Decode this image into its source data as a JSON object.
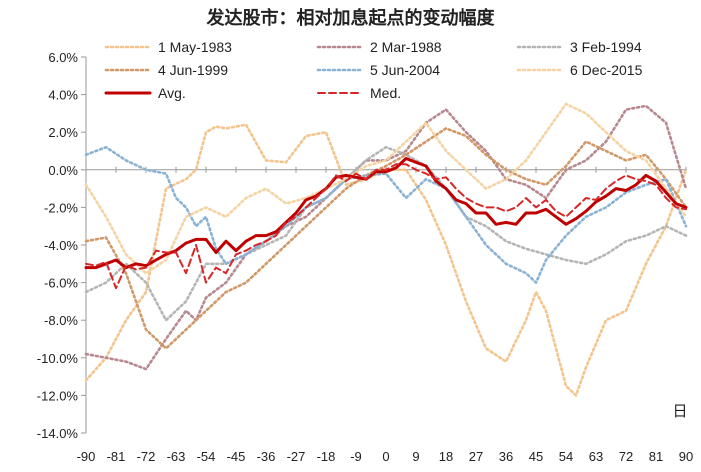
{
  "chart_data": {
    "type": "line",
    "title": "发达股市：相对加息起点的变动幅度",
    "xlabel": "日",
    "ylabel": "",
    "ylim": [
      -14,
      6
    ],
    "yticks": [
      6,
      4,
      2,
      0,
      -2,
      -4,
      -6,
      -8,
      -10,
      -12,
      -14
    ],
    "ytick_labels": [
      "6.0%",
      "4.0%",
      "2.0%",
      "0.0%",
      "-2.0%",
      "-4.0%",
      "-6.0%",
      "-8.0%",
      "-10.0%",
      "-12.0%",
      "-14.0%"
    ],
    "xlim": [
      -90,
      90
    ],
    "xticks": [
      -90,
      -81,
      -72,
      -63,
      -54,
      -45,
      -36,
      -27,
      -18,
      -9,
      0,
      9,
      18,
      27,
      36,
      45,
      54,
      63,
      72,
      81,
      90
    ],
    "xtick_labels": [
      "-90",
      "-81",
      "-72",
      "-63",
      "-54",
      "-45",
      "-36",
      "-27",
      "-18",
      "-9",
      "0",
      "9",
      "18",
      "27",
      "36",
      "45",
      "54",
      "63",
      "72",
      "81",
      "90"
    ],
    "legend_placement": "top",
    "series": [
      {
        "name": "1 May-1983",
        "color": "#f3c48d",
        "style": "dotted",
        "x": [
          -90,
          -84,
          -78,
          -72,
          -66,
          -60,
          -57,
          -54,
          -51,
          -48,
          -45,
          -42,
          -36,
          -30,
          -24,
          -18,
          -12,
          -6,
          0,
          6,
          12,
          18,
          24,
          30,
          36,
          42,
          45,
          48,
          54,
          57,
          60,
          66,
          72,
          78,
          84,
          90
        ],
        "y": [
          -11.2,
          -10.0,
          -8.0,
          -6.5,
          -1.0,
          -0.5,
          0.0,
          2.0,
          2.3,
          2.2,
          2.3,
          2.4,
          0.5,
          0.4,
          1.8,
          2.0,
          -0.8,
          -0.5,
          0.0,
          0.0,
          -1.6,
          -4.0,
          -7.0,
          -9.5,
          -10.2,
          -8.0,
          -6.5,
          -7.5,
          -11.5,
          -12.0,
          -10.5,
          -8.0,
          -7.5,
          -5.0,
          -3.0,
          0.0
        ]
      },
      {
        "name": "2 Mar-1988",
        "color": "#b7888f",
        "style": "dotted",
        "x": [
          -90,
          -84,
          -78,
          -72,
          -66,
          -60,
          -57,
          -54,
          -48,
          -42,
          -36,
          -30,
          -24,
          -18,
          -12,
          -6,
          0,
          6,
          12,
          18,
          24,
          30,
          36,
          42,
          48,
          54,
          60,
          66,
          72,
          78,
          84,
          90
        ],
        "y": [
          -9.8,
          -10.0,
          -10.2,
          -10.6,
          -9.0,
          -7.5,
          -8.0,
          -6.8,
          -6.0,
          -4.5,
          -3.8,
          -3.0,
          -2.5,
          -1.5,
          -0.5,
          0.5,
          0.5,
          1.0,
          2.5,
          3.2,
          2.0,
          1.0,
          -0.5,
          -0.8,
          -1.5,
          0.0,
          0.5,
          1.5,
          3.2,
          3.4,
          2.5,
          -1.0
        ]
      },
      {
        "name": "3 Feb-1994",
        "color": "#b5b5b5",
        "style": "dotted",
        "x": [
          -90,
          -84,
          -78,
          -72,
          -66,
          -60,
          -54,
          -48,
          -42,
          -36,
          -30,
          -24,
          -18,
          -12,
          -6,
          0,
          6,
          12,
          18,
          24,
          30,
          36,
          42,
          48,
          54,
          60,
          66,
          72,
          78,
          84,
          90
        ],
        "y": [
          -6.5,
          -6.0,
          -5.0,
          -6.0,
          -8.0,
          -7.0,
          -5.0,
          -5.0,
          -4.5,
          -4.0,
          -3.5,
          -2.0,
          -1.5,
          -0.5,
          0.5,
          1.2,
          0.8,
          0.2,
          -1.0,
          -2.5,
          -3.0,
          -3.8,
          -4.2,
          -4.5,
          -4.8,
          -5.0,
          -4.5,
          -3.8,
          -3.5,
          -3.0,
          -3.5
        ]
      },
      {
        "name": "4 Jun-1999",
        "color": "#d19868",
        "style": "dotted",
        "x": [
          -90,
          -84,
          -78,
          -72,
          -66,
          -60,
          -54,
          -48,
          -42,
          -36,
          -30,
          -24,
          -18,
          -12,
          -6,
          0,
          6,
          12,
          18,
          24,
          30,
          36,
          42,
          48,
          54,
          60,
          66,
          72,
          78,
          84,
          90
        ],
        "y": [
          -3.8,
          -3.6,
          -5.5,
          -8.5,
          -9.5,
          -8.5,
          -7.5,
          -6.5,
          -6.0,
          -5.0,
          -4.0,
          -3.0,
          -2.0,
          -1.0,
          -0.3,
          0.2,
          0.8,
          1.5,
          2.2,
          1.8,
          0.8,
          0.0,
          -0.5,
          -0.8,
          0.2,
          1.5,
          1.0,
          0.5,
          0.8,
          -0.5,
          -2.0
        ]
      },
      {
        "name": "5 Jun-2004",
        "color": "#8ab2d4",
        "style": "dotted",
        "x": [
          -90,
          -84,
          -78,
          -72,
          -66,
          -63,
          -60,
          -57,
          -54,
          -51,
          -48,
          -42,
          -36,
          -30,
          -24,
          -18,
          -12,
          -6,
          0,
          6,
          12,
          18,
          24,
          30,
          36,
          42,
          45,
          48,
          54,
          60,
          66,
          72,
          78,
          84,
          90
        ],
        "y": [
          0.8,
          1.2,
          0.5,
          0.0,
          -0.2,
          -1.5,
          -2.0,
          -3.0,
          -2.5,
          -4.2,
          -5.0,
          -4.5,
          -3.8,
          -3.0,
          -2.0,
          -1.5,
          -0.5,
          -0.3,
          -0.2,
          -1.5,
          -0.5,
          -1.0,
          -2.5,
          -4.0,
          -5.0,
          -5.5,
          -6.0,
          -4.8,
          -3.5,
          -2.5,
          -2.0,
          -1.2,
          -0.8,
          -0.5,
          -3.0
        ]
      },
      {
        "name": "6 Dec-2015",
        "color": "#f5d3a2",
        "style": "dotted",
        "x": [
          -90,
          -84,
          -78,
          -72,
          -66,
          -60,
          -54,
          -48,
          -42,
          -36,
          -30,
          -24,
          -18,
          -12,
          -6,
          0,
          6,
          12,
          18,
          24,
          30,
          36,
          42,
          48,
          54,
          60,
          66,
          72,
          78,
          84,
          90
        ],
        "y": [
          -0.8,
          -2.5,
          -4.5,
          -5.5,
          -4.8,
          -2.5,
          -2.0,
          -2.5,
          -1.5,
          -1.0,
          -1.8,
          -1.5,
          -1.0,
          -0.5,
          0.2,
          0.5,
          1.5,
          2.5,
          1.0,
          0.0,
          -1.0,
          -0.5,
          0.5,
          2.0,
          3.5,
          3.0,
          2.0,
          1.0,
          0.5,
          -1.0,
          -2.5
        ]
      },
      {
        "name": "Avg.",
        "color": "#c00000",
        "style": "solid",
        "x": [
          -90,
          -87,
          -84,
          -81,
          -78,
          -75,
          -72,
          -69,
          -66,
          -63,
          -60,
          -57,
          -54,
          -51,
          -48,
          -45,
          -42,
          -39,
          -36,
          -33,
          -30,
          -27,
          -24,
          -21,
          -18,
          -15,
          -12,
          -9,
          -6,
          -3,
          0,
          3,
          6,
          9,
          12,
          15,
          18,
          21,
          24,
          27,
          30,
          33,
          36,
          39,
          42,
          45,
          48,
          51,
          54,
          57,
          60,
          63,
          66,
          69,
          72,
          75,
          78,
          81,
          84,
          87,
          90
        ],
        "y": [
          -5.2,
          -5.2,
          -5.0,
          -4.8,
          -5.2,
          -5.0,
          -5.1,
          -4.8,
          -4.5,
          -4.3,
          -3.9,
          -3.7,
          -3.7,
          -4.4,
          -3.8,
          -4.3,
          -3.8,
          -3.5,
          -3.5,
          -3.3,
          -2.8,
          -2.3,
          -1.6,
          -1.4,
          -1.0,
          -0.4,
          -0.3,
          -0.4,
          -0.5,
          -0.1,
          -0.1,
          0.1,
          0.6,
          0.4,
          0.2,
          -0.6,
          -1.0,
          -1.6,
          -1.8,
          -2.3,
          -2.3,
          -2.9,
          -2.8,
          -2.9,
          -2.3,
          -2.3,
          -2.1,
          -2.5,
          -2.9,
          -2.6,
          -2.2,
          -1.7,
          -1.4,
          -1.0,
          -1.1,
          -0.8,
          -0.3,
          -0.6,
          -1.2,
          -1.8,
          -2.0
        ]
      },
      {
        "name": "Med.",
        "color": "#d62728",
        "style": "dashed",
        "x": [
          -90,
          -87,
          -84,
          -81,
          -78,
          -75,
          -72,
          -69,
          -66,
          -63,
          -60,
          -57,
          -54,
          -51,
          -48,
          -45,
          -42,
          -39,
          -36,
          -33,
          -30,
          -27,
          -24,
          -21,
          -18,
          -15,
          -12,
          -9,
          -6,
          -3,
          0,
          3,
          6,
          9,
          12,
          15,
          18,
          21,
          24,
          27,
          30,
          33,
          36,
          39,
          42,
          45,
          48,
          51,
          54,
          57,
          60,
          63,
          66,
          69,
          72,
          75,
          78,
          81,
          84,
          87,
          90
        ],
        "y": [
          -5.0,
          -5.1,
          -4.9,
          -6.3,
          -5.1,
          -5.3,
          -5.2,
          -4.3,
          -4.4,
          -4.4,
          -5.5,
          -4.0,
          -6.0,
          -5.2,
          -5.5,
          -4.5,
          -4.3,
          -4.0,
          -3.8,
          -3.5,
          -2.8,
          -2.5,
          -2.0,
          -1.5,
          -1.0,
          -0.3,
          -0.6,
          -0.2,
          -0.5,
          0.0,
          0.0,
          0.3,
          0.3,
          0.0,
          -0.2,
          -0.5,
          -0.4,
          -1.0,
          -1.5,
          -1.8,
          -2.0,
          -2.0,
          -2.2,
          -2.0,
          -1.5,
          -2.0,
          -1.6,
          -2.2,
          -2.5,
          -2.0,
          -1.5,
          -1.6,
          -1.0,
          -0.6,
          -0.3,
          -0.5,
          -0.6,
          -0.8,
          -1.5,
          -2.0,
          -2.1
        ]
      }
    ]
  }
}
